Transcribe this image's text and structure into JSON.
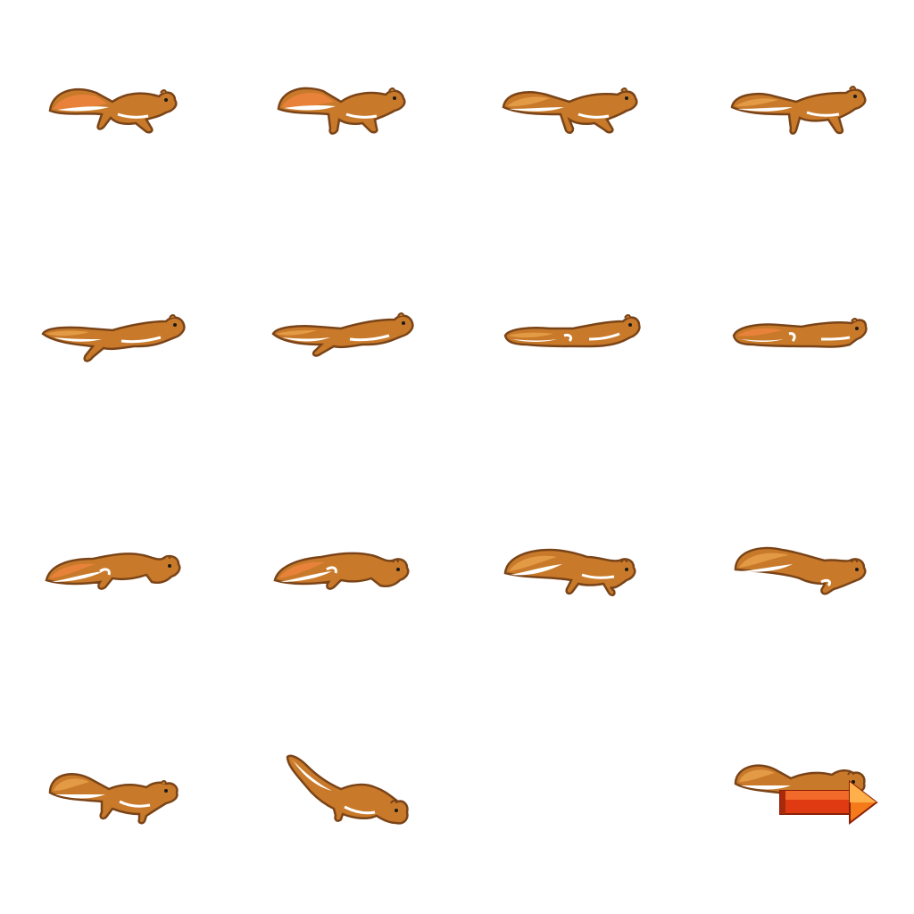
{
  "sprite_sheet": {
    "grid": {
      "columns": 4,
      "rows": 4
    },
    "colors": {
      "background": "#ffffff",
      "fur": "#c87a2a",
      "fur_light": "#e39a45",
      "fur_dark": "#7a4418",
      "belly": "#ffffff",
      "tail_tip": "#e8823a",
      "eye": "#1a1a1a",
      "arrow_red": "#e03a12",
      "arrow_orange": "#f47a1a"
    },
    "frames": [
      {
        "pose": "gallop-gather",
        "icon": "squirrel-sprite"
      },
      {
        "pose": "gallop-gather-2",
        "icon": "squirrel-sprite"
      },
      {
        "pose": "gallop-reach",
        "icon": "squirrel-sprite"
      },
      {
        "pose": "stand-stretch",
        "icon": "squirrel-sprite"
      },
      {
        "pose": "leap-extended",
        "icon": "squirrel-sprite"
      },
      {
        "pose": "leap-extended-2",
        "icon": "squirrel-sprite"
      },
      {
        "pose": "glide-flat",
        "icon": "squirrel-sprite"
      },
      {
        "pose": "glide-flat-2",
        "icon": "squirrel-sprite"
      },
      {
        "pose": "crouch-land",
        "icon": "squirrel-sprite"
      },
      {
        "pose": "crouch-land-2",
        "icon": "squirrel-sprite"
      },
      {
        "pose": "push-off",
        "icon": "squirrel-sprite"
      },
      {
        "pose": "push-off-2",
        "icon": "squirrel-sprite"
      },
      {
        "pose": "run-low",
        "icon": "squirrel-sprite"
      },
      {
        "pose": "dive-down",
        "icon": "squirrel-sprite"
      },
      {
        "pose": "empty",
        "icon": ""
      },
      {
        "pose": "ride-arrow",
        "icon": "squirrel-on-arrow-sprite"
      }
    ]
  }
}
